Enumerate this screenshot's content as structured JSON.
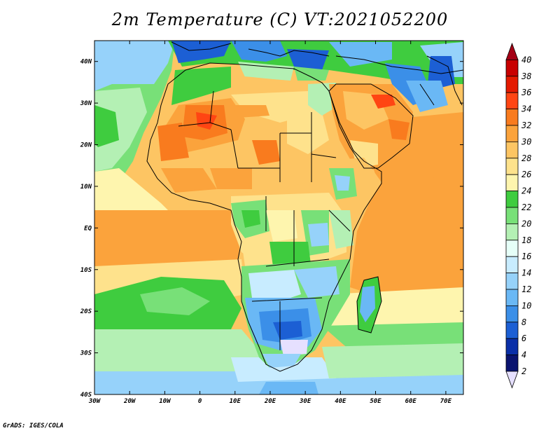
{
  "title": "2m Temperature (C) VT:2021052200",
  "footer": "GrADS: IGES/COLA",
  "map": {
    "region": "Africa",
    "variable": "2m Temperature",
    "units": "C",
    "lon_range": [
      -30,
      75
    ],
    "lat_range": [
      -40,
      45
    ],
    "lon_ticks": [
      "30W",
      "20W",
      "10W",
      "0",
      "10E",
      "20E",
      "30E",
      "40E",
      "50E",
      "60E",
      "70E"
    ],
    "lat_ticks": [
      "40N",
      "30N",
      "20N",
      "10N",
      "EQ",
      "10S",
      "20S",
      "30S",
      "40S"
    ]
  },
  "colorbar": {
    "labels": [
      "40",
      "38",
      "36",
      "34",
      "32",
      "30",
      "28",
      "26",
      "24",
      "22",
      "20",
      "18",
      "16",
      "14",
      "12",
      "10",
      "8",
      "6",
      "4",
      "2"
    ],
    "colors": {
      "above_40": "#a50015",
      "38_40": "#c80000",
      "36_38": "#e41a00",
      "34_36": "#ff4513",
      "32_34": "#f97b1e",
      "30_32": "#fba33c",
      "28_30": "#fdc563",
      "26_28": "#fee28c",
      "24_26": "#fef5ae",
      "22_24": "#3fcc3f",
      "20_22": "#78e078",
      "18_20": "#b4f0b4",
      "16_18": "#e6fff8",
      "14_16": "#c8ecff",
      "12_14": "#96d2fa",
      "10_12": "#6ab8f5",
      "8_10": "#3b8fe8",
      "6_8": "#1c5fd4",
      "4_6": "#0a2fa8",
      "2_4": "#0a1470",
      "below_2": "#e6e0ff"
    }
  }
}
